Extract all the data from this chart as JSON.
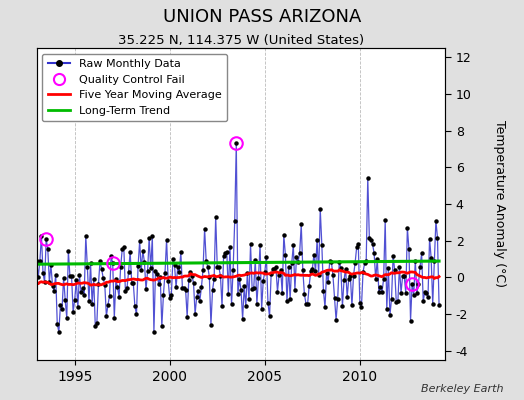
{
  "title": "UNION PASS ARIZONA",
  "subtitle": "35.225 N, 114.375 W (United States)",
  "ylabel_right": "Temperature Anomaly (°C)",
  "credit": "Berkeley Earth",
  "xlim": [
    1993.0,
    2014.5
  ],
  "ylim": [
    -4.5,
    12.5
  ],
  "yticks": [
    -4,
    -2,
    0,
    2,
    4,
    6,
    8,
    10,
    12
  ],
  "xticks": [
    1995,
    2000,
    2005,
    2010
  ],
  "bg_color": "#e0e0e0",
  "plot_bg_color": "#ffffff",
  "line_color": "#3333cc",
  "dot_color": "#000000",
  "ma_color": "#ff0000",
  "trend_color": "#00bb00",
  "qc_color": "#ff00ff",
  "trend_level": 0.72,
  "trend_slope": 0.008,
  "start_year": 1993.0,
  "end_year": 2014.25,
  "seed": 42,
  "qc_times": [
    1993.5,
    1997.0,
    2003.58,
    2012.75
  ],
  "spike_times": [
    2003.58
  ],
  "spike_values": [
    7.3
  ]
}
